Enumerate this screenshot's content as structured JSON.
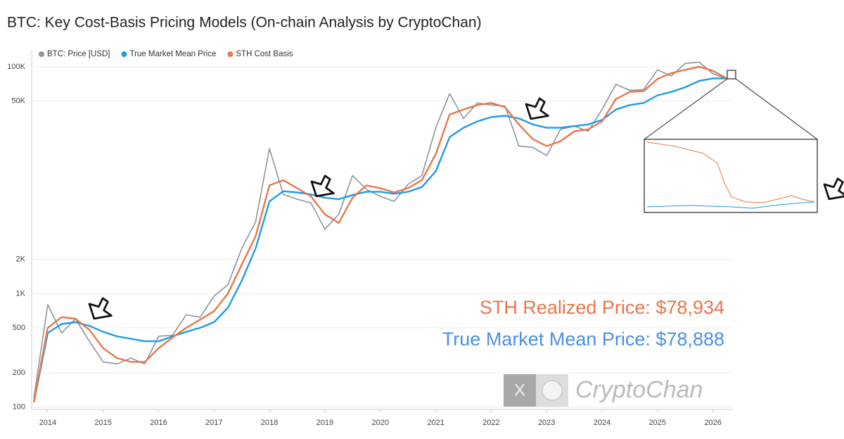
{
  "chart_data": {
    "type": "line",
    "title": "BTC: Key Cost-Basis Pricing Models (On-chain Analysis by CryptoChan)",
    "log_scale": true,
    "grid": true,
    "legend": "top-left",
    "xlim": [
      2013.71,
      2026.36
    ],
    "xticks": [
      2014,
      2015,
      2016,
      2017,
      2018,
      2019,
      2020,
      2021,
      2022,
      2023,
      2024,
      2025,
      2026
    ],
    "ylim": [
      98,
      160000
    ],
    "yticks": [
      100,
      200,
      500,
      {
        "value": 1000,
        "label": "1K"
      },
      {
        "value": 2000,
        "label": "2K"
      },
      {
        "value": 50000,
        "label": "50K"
      },
      {
        "value": 100000,
        "label": "100K"
      }
    ],
    "x": [
      2013.75,
      2014.0,
      2014.25,
      2014.5,
      2014.75,
      2015.0,
      2015.25,
      2015.5,
      2015.75,
      2016.0,
      2016.25,
      2016.5,
      2016.75,
      2017.0,
      2017.25,
      2017.5,
      2017.75,
      2018.0,
      2018.25,
      2018.5,
      2018.75,
      2019.0,
      2019.25,
      2019.5,
      2019.75,
      2020.0,
      2020.25,
      2020.5,
      2020.75,
      2021.0,
      2021.25,
      2021.5,
      2021.75,
      2022.0,
      2022.25,
      2022.5,
      2022.75,
      2023.0,
      2023.25,
      2023.5,
      2023.75,
      2024.0,
      2024.25,
      2024.5,
      2024.75,
      2025.0,
      2025.25,
      2025.5,
      2025.75,
      2026.0,
      2026.25
    ],
    "series": [
      {
        "name": "BTC: Price [USD]",
        "color": "#8a959c",
        "values": [
          120,
          800,
          450,
          600,
          380,
          250,
          240,
          270,
          240,
          420,
          430,
          650,
          620,
          950,
          1200,
          2500,
          4300,
          19000,
          7500,
          6800,
          6300,
          3700,
          5000,
          11000,
          8300,
          7200,
          6500,
          9200,
          11000,
          29000,
          58000,
          35000,
          48000,
          46000,
          45000,
          20000,
          19500,
          16500,
          28000,
          30000,
          27000,
          42000,
          70000,
          62000,
          63000,
          94000,
          83000,
          107000,
          110000,
          87000,
          78000
        ]
      },
      {
        "name": "True Market Mean Price",
        "color": "#1e9be8",
        "values": [
          110,
          450,
          540,
          560,
          520,
          460,
          420,
          400,
          380,
          380,
          420,
          460,
          500,
          560,
          750,
          1300,
          2500,
          6500,
          8000,
          7800,
          7500,
          7000,
          6800,
          7400,
          7900,
          7900,
          7600,
          7900,
          8700,
          12000,
          24000,
          29000,
          33000,
          36000,
          37000,
          35000,
          31000,
          29000,
          29000,
          30000,
          31000,
          34000,
          42000,
          46000,
          48000,
          56000,
          60000,
          66000,
          75000,
          79000,
          78888
        ]
      },
      {
        "name": "STH Cost Basis",
        "color": "#e8764a",
        "values": [
          110,
          500,
          620,
          600,
          480,
          330,
          270,
          250,
          250,
          330,
          410,
          500,
          590,
          700,
          1000,
          1800,
          3200,
          9000,
          10000,
          8500,
          7200,
          5000,
          4200,
          7000,
          9000,
          8500,
          7800,
          8500,
          10000,
          17000,
          38000,
          42000,
          46000,
          48000,
          44000,
          31000,
          23000,
          20000,
          22000,
          27000,
          28000,
          33000,
          52000,
          60000,
          61000,
          78000,
          88000,
          94000,
          100000,
          92000,
          78934
        ]
      }
    ],
    "annotations": [
      "STH Realized Price: $78,934",
      "True Market Mean Price: $78,888"
    ],
    "watermark": "CryptoChan"
  }
}
